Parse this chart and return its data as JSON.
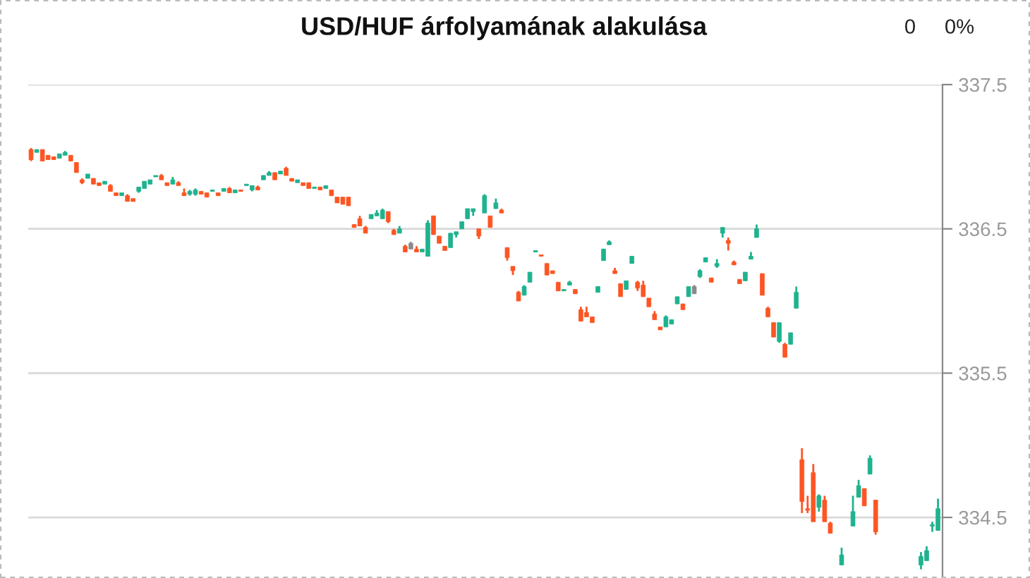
{
  "chart_data": {
    "type": "candlestick",
    "title": "USD/HUF árfolyamának alakulása",
    "annotations": [
      "0",
      "0%"
    ],
    "categories": [
      null,
      null,
      null,
      null,
      null,
      null,
      null,
      null,
      null,
      null,
      null,
      null,
      null,
      null,
      null,
      null,
      null,
      null,
      null,
      null,
      null,
      null,
      null,
      null,
      null,
      null,
      null,
      null,
      null,
      null,
      null,
      null,
      null,
      null,
      null,
      null,
      null,
      null,
      null,
      null,
      null,
      null,
      null,
      null,
      null,
      null,
      null,
      null,
      null,
      null,
      null,
      null,
      null,
      null,
      null,
      null,
      null,
      null,
      null,
      null,
      null,
      null,
      null,
      null,
      null,
      null,
      null,
      null,
      null,
      null,
      null,
      null,
      null,
      null,
      null,
      null,
      null,
      null,
      null,
      null,
      null,
      null,
      null,
      null,
      null,
      null,
      null,
      null,
      null,
      null,
      null,
      null,
      null,
      null,
      null,
      null,
      null,
      null,
      null,
      null,
      null,
      null,
      null,
      null,
      null,
      null,
      null,
      null,
      null,
      null,
      null,
      null,
      null,
      null,
      null,
      null,
      null,
      null,
      null,
      null,
      null,
      null,
      null,
      null,
      null,
      null,
      null,
      null,
      null,
      null,
      null,
      null,
      null,
      null,
      null,
      null,
      null,
      null,
      null,
      null,
      null,
      null,
      null,
      null,
      null,
      null,
      null,
      null,
      null,
      null,
      null,
      null,
      null,
      null,
      null,
      null,
      null,
      null,
      null,
      null,
      null
    ],
    "ohlc": [
      [
        337.05,
        337.06,
        336.97,
        336.98
      ],
      [
        337.03,
        337.05,
        337.03,
        337.05
      ],
      [
        337.05,
        337.05,
        336.97,
        336.97
      ],
      [
        337.01,
        337.01,
        336.98,
        336.98
      ],
      [
        337.0,
        337.0,
        336.98,
        336.98
      ],
      [
        336.99,
        337.02,
        336.99,
        337.02
      ],
      [
        337.01,
        337.04,
        337.01,
        337.03
      ],
      [
        337.01,
        337.01,
        336.97,
        336.97
      ],
      [
        336.96,
        336.96,
        336.89,
        336.89
      ],
      [
        336.84,
        336.85,
        336.81,
        336.82
      ],
      [
        336.85,
        336.88,
        336.85,
        336.88
      ],
      [
        336.85,
        336.85,
        336.81,
        336.81
      ],
      [
        336.82,
        336.82,
        336.8,
        336.8
      ],
      [
        336.81,
        336.83,
        336.81,
        336.83
      ],
      [
        336.8,
        336.81,
        336.76,
        336.76
      ],
      [
        336.75,
        336.75,
        336.73,
        336.73
      ],
      [
        336.73,
        336.75,
        336.73,
        336.75
      ],
      [
        336.73,
        336.74,
        336.69,
        336.69
      ],
      [
        336.71,
        336.71,
        336.69,
        336.69
      ],
      [
        336.76,
        336.79,
        336.75,
        336.79
      ],
      [
        336.78,
        336.83,
        336.78,
        336.83
      ],
      [
        336.81,
        336.84,
        336.81,
        336.84
      ],
      [
        336.86,
        336.87,
        336.86,
        336.87
      ],
      [
        336.87,
        336.88,
        336.84,
        336.84
      ],
      [
        336.82,
        336.82,
        336.8,
        336.8
      ],
      [
        336.81,
        336.86,
        336.81,
        336.84
      ],
      [
        336.82,
        336.83,
        336.8,
        336.8
      ],
      [
        336.75,
        336.78,
        336.73,
        336.73
      ],
      [
        336.74,
        336.77,
        336.73,
        336.76
      ],
      [
        336.74,
        336.78,
        336.73,
        336.77
      ],
      [
        336.76,
        336.76,
        336.74,
        336.74
      ],
      [
        336.75,
        336.75,
        336.72,
        336.72
      ],
      [
        336.76,
        336.77,
        336.76,
        336.77
      ],
      [
        336.75,
        336.75,
        336.73,
        336.73
      ],
      [
        336.76,
        336.78,
        336.76,
        336.78
      ],
      [
        336.78,
        336.79,
        336.75,
        336.75
      ],
      [
        336.75,
        336.77,
        336.75,
        336.77
      ],
      [
        336.77,
        336.77,
        336.76,
        336.76
      ],
      [
        336.8,
        336.81,
        336.8,
        336.81
      ],
      [
        336.77,
        336.8,
        336.76,
        336.8
      ],
      [
        336.79,
        336.8,
        336.77,
        336.77
      ],
      [
        336.84,
        336.87,
        336.84,
        336.87
      ],
      [
        336.87,
        336.9,
        336.87,
        336.89
      ],
      [
        336.89,
        336.89,
        336.84,
        336.84
      ],
      [
        336.88,
        336.9,
        336.88,
        336.9
      ],
      [
        336.92,
        336.93,
        336.87,
        336.87
      ],
      [
        336.85,
        336.85,
        336.83,
        336.83
      ],
      [
        336.82,
        336.84,
        336.82,
        336.84
      ],
      [
        336.82,
        336.82,
        336.8,
        336.8
      ],
      [
        336.82,
        336.82,
        336.78,
        336.78
      ],
      [
        336.78,
        336.79,
        336.78,
        336.79
      ],
      [
        336.79,
        336.79,
        336.77,
        336.77
      ],
      [
        336.78,
        336.8,
        336.78,
        336.8
      ],
      [
        336.77,
        336.77,
        336.73,
        336.73
      ],
      [
        336.72,
        336.72,
        336.68,
        336.68
      ],
      [
        336.72,
        336.72,
        336.67,
        336.67
      ],
      [
        336.72,
        336.72,
        336.66,
        336.66
      ],
      [
        336.53,
        336.53,
        336.51,
        336.51
      ],
      [
        336.57,
        336.59,
        336.52,
        336.52
      ],
      [
        336.51,
        336.52,
        336.47,
        336.47
      ],
      [
        336.57,
        336.6,
        336.57,
        336.6
      ],
      [
        336.59,
        336.63,
        336.59,
        336.61
      ],
      [
        336.57,
        336.64,
        336.57,
        336.63
      ],
      [
        336.62,
        336.62,
        336.54,
        336.55
      ],
      [
        336.49,
        336.5,
        336.46,
        336.46
      ],
      [
        336.47,
        336.52,
        336.47,
        336.5
      ],
      [
        336.38,
        336.39,
        336.34,
        336.34
      ],
      [
        336.4,
        336.41,
        336.36,
        336.36
      ],
      [
        336.36,
        336.38,
        336.34,
        336.34
      ],
      [
        336.34,
        336.36,
        336.34,
        336.36
      ],
      [
        336.31,
        336.56,
        336.31,
        336.54
      ],
      [
        336.59,
        336.59,
        336.46,
        336.46
      ],
      [
        336.45,
        336.45,
        336.4,
        336.4
      ],
      [
        336.38,
        336.38,
        336.35,
        336.35
      ],
      [
        336.37,
        336.47,
        336.37,
        336.47
      ],
      [
        336.46,
        336.48,
        336.44,
        336.48
      ],
      [
        336.5,
        336.55,
        336.5,
        336.55
      ],
      [
        336.57,
        336.64,
        336.57,
        336.64
      ],
      [
        336.62,
        336.64,
        336.59,
        336.64
      ],
      [
        336.5,
        336.5,
        336.43,
        336.45
      ],
      [
        336.61,
        336.74,
        336.61,
        336.73
      ],
      [
        336.59,
        336.59,
        336.51,
        336.51
      ],
      [
        336.64,
        336.71,
        336.64,
        336.68
      ],
      [
        336.63,
        336.64,
        336.61,
        336.61
      ],
      [
        336.37,
        336.37,
        336.28,
        336.3
      ],
      [
        336.24,
        336.24,
        336.18,
        336.21
      ],
      [
        336.06,
        336.07,
        336.0,
        336.0
      ],
      [
        336.04,
        336.11,
        336.04,
        336.1
      ],
      [
        336.13,
        336.2,
        336.13,
        336.2
      ],
      [
        336.34,
        336.35,
        336.34,
        336.35
      ],
      [
        336.32,
        336.32,
        336.31,
        336.31
      ],
      [
        336.26,
        336.26,
        336.18,
        336.18
      ],
      [
        336.21,
        336.21,
        336.19,
        336.19
      ],
      [
        336.13,
        336.13,
        336.07,
        336.07
      ],
      [
        336.07,
        336.08,
        336.07,
        336.08
      ],
      [
        336.11,
        336.14,
        336.11,
        336.13
      ],
      [
        336.08,
        336.08,
        336.05,
        336.05
      ],
      [
        335.94,
        335.96,
        335.86,
        335.86
      ],
      [
        335.92,
        335.96,
        335.89,
        335.89
      ],
      [
        335.89,
        335.89,
        335.85,
        335.85
      ],
      [
        336.06,
        336.1,
        336.06,
        336.1
      ],
      [
        336.28,
        336.36,
        336.28,
        336.36
      ],
      [
        336.39,
        336.42,
        336.39,
        336.41
      ],
      [
        336.21,
        336.23,
        336.19,
        336.19
      ],
      [
        336.12,
        336.12,
        336.03,
        336.03
      ],
      [
        336.08,
        336.14,
        336.08,
        336.14
      ],
      [
        336.26,
        336.31,
        336.26,
        336.31
      ],
      [
        336.13,
        336.14,
        336.07,
        336.09
      ],
      [
        336.11,
        336.14,
        336.03,
        336.03
      ],
      [
        336.02,
        336.02,
        335.96,
        335.96
      ],
      [
        335.91,
        335.93,
        335.87,
        335.87
      ],
      [
        335.82,
        335.82,
        335.8,
        335.8
      ],
      [
        335.82,
        335.9,
        335.82,
        335.89
      ],
      [
        335.84,
        335.87,
        335.84,
        335.87
      ],
      [
        335.98,
        336.03,
        335.98,
        336.03
      ],
      [
        335.98,
        335.98,
        335.94,
        335.94
      ],
      [
        336.03,
        336.1,
        336.03,
        336.1
      ],
      [
        336.1,
        336.11,
        336.05,
        336.05
      ],
      [
        336.17,
        336.22,
        336.16,
        336.21
      ],
      [
        336.27,
        336.3,
        336.27,
        336.3
      ],
      [
        336.16,
        336.16,
        336.13,
        336.13
      ],
      [
        336.24,
        336.29,
        336.23,
        336.26
      ],
      [
        336.47,
        336.51,
        336.44,
        336.51
      ],
      [
        336.42,
        336.44,
        336.35,
        336.4
      ],
      [
        336.27,
        336.28,
        336.25,
        336.25
      ],
      [
        336.15,
        336.15,
        336.12,
        336.12
      ],
      [
        336.14,
        336.2,
        336.14,
        336.2
      ],
      [
        336.29,
        336.34,
        336.29,
        336.31
      ],
      [
        336.44,
        336.53,
        336.44,
        336.5
      ],
      [
        336.19,
        336.19,
        336.04,
        336.04
      ],
      [
        335.95,
        335.96,
        335.89,
        335.89
      ],
      [
        335.85,
        335.85,
        335.75,
        335.75
      ],
      [
        335.72,
        335.85,
        335.71,
        335.85
      ],
      [
        335.7,
        335.71,
        335.61,
        335.61
      ],
      [
        335.7,
        335.78,
        335.7,
        335.78
      ],
      [
        335.95,
        336.1,
        335.95,
        336.06
      ],
      [
        334.9,
        334.98,
        334.53,
        334.61
      ],
      [
        334.56,
        334.65,
        334.53,
        334.55
      ],
      [
        334.81,
        334.87,
        334.47,
        334.47
      ],
      [
        334.57,
        334.66,
        334.54,
        334.65
      ],
      [
        334.62,
        334.65,
        334.47,
        334.47
      ],
      [
        334.46,
        334.47,
        334.39,
        334.39
      ],
      null,
      [
        334.17,
        334.29,
        334.17,
        334.24
      ],
      null,
      [
        334.44,
        334.65,
        334.44,
        334.54
      ],
      [
        334.64,
        334.76,
        334.64,
        334.72
      ],
      [
        334.7,
        334.7,
        334.58,
        334.58
      ],
      [
        334.8,
        334.93,
        334.8,
        334.91
      ],
      [
        334.62,
        334.62,
        334.38,
        334.4
      ],
      null,
      null,
      null,
      null,
      null,
      null,
      null,
      [
        334.17,
        334.26,
        334.14,
        334.23
      ],
      [
        334.2,
        334.3,
        334.2,
        334.27
      ],
      [
        334.44,
        334.47,
        334.4,
        334.45
      ],
      [
        334.41,
        334.63,
        334.41,
        334.56
      ]
    ],
    "colors": [
      "#fd5523",
      "#1fb28e",
      "#fd5523",
      "#fd5523",
      "#fd5523",
      "#1fb28e",
      "#1fb28e",
      "#fd5523",
      "#fd5523",
      "#fd5523",
      "#1fb28e",
      "#fd5523",
      "#fd5523",
      "#1fb28e",
      "#fd5523",
      "#fd5523",
      "#1fb28e",
      "#fd5523",
      "#fd5523",
      "#1fb28e",
      "#1fb28e",
      "#1fb28e",
      "#1fb28e",
      "#fd5523",
      "#fd5523",
      "#1fb28e",
      "#fd5523",
      "#fd5523",
      "#1fb28e",
      "#1fb28e",
      "#fd5523",
      "#fd5523",
      "#1fb28e",
      "#fd5523",
      "#1fb28e",
      "#fd5523",
      "#1fb28e",
      "#fd5523",
      "#1fb28e",
      "#1fb28e",
      "#fd5523",
      "#1fb28e",
      "#1fb28e",
      "#fd5523",
      "#1fb28e",
      "#fd5523",
      "#fd5523",
      "#1fb28e",
      "#fd5523",
      "#fd5523",
      "#1fb28e",
      "#fd5523",
      "#1fb28e",
      "#fd5523",
      "#fd5523",
      "#fd5523",
      "#fd5523",
      "#fd5523",
      "#fd5523",
      "#fd5523",
      "#1fb28e",
      "#1fb28e",
      "#1fb28e",
      "#fd5523",
      "#fd5523",
      "#1fb28e",
      "#fd5523",
      "#8a8a8a",
      "#fd5523",
      "#1fb28e",
      "#1fb28e",
      "#fd5523",
      "#fd5523",
      "#fd5523",
      "#1fb28e",
      "#1fb28e",
      "#1fb28e",
      "#1fb28e",
      "#1fb28e",
      "#fd5523",
      "#1fb28e",
      "#fd5523",
      "#1fb28e",
      "#fd5523",
      "#fd5523",
      "#fd5523",
      "#fd5523",
      "#1fb28e",
      "#1fb28e",
      "#1fb28e",
      "#fd5523",
      "#fd5523",
      "#fd5523",
      "#fd5523",
      "#1fb28e",
      "#1fb28e",
      "#fd5523",
      "#fd5523",
      "#fd5523",
      "#fd5523",
      "#1fb28e",
      "#1fb28e",
      "#1fb28e",
      "#fd5523",
      "#fd5523",
      "#1fb28e",
      "#1fb28e",
      "#fd5523",
      "#fd5523",
      "#fd5523",
      "#fd5523",
      "#fd5523",
      "#1fb28e",
      "#1fb28e",
      "#1fb28e",
      "#fd5523",
      "#1fb28e",
      "#8a8a8a",
      "#1fb28e",
      "#1fb28e",
      "#fd5523",
      "#1fb28e",
      "#1fb28e",
      "#fd5523",
      "#fd5523",
      "#fd5523",
      "#1fb28e",
      "#1fb28e",
      "#1fb28e",
      "#fd5523",
      "#fd5523",
      "#fd5523",
      "#1fb28e",
      "#fd5523",
      "#1fb28e",
      "#1fb28e",
      "#fd5523",
      "#fd5523",
      "#fd5523",
      "#1fb28e",
      "#fd5523",
      "#fd5523",
      null,
      "#1fb28e",
      null,
      "#1fb28e",
      "#1fb28e",
      "#fd5523",
      "#1fb28e",
      "#fd5523",
      null,
      null,
      null,
      null,
      null,
      null,
      null,
      "#1fb28e",
      "#1fb28e",
      "#1fb28e",
      "#1fb28e"
    ],
    "ylim": [
      334.08,
      337.5
    ],
    "yticks": [
      334.5,
      335.5,
      336.5,
      337.5
    ],
    "grid": "y",
    "tick_labels": "y",
    "legend": false
  }
}
